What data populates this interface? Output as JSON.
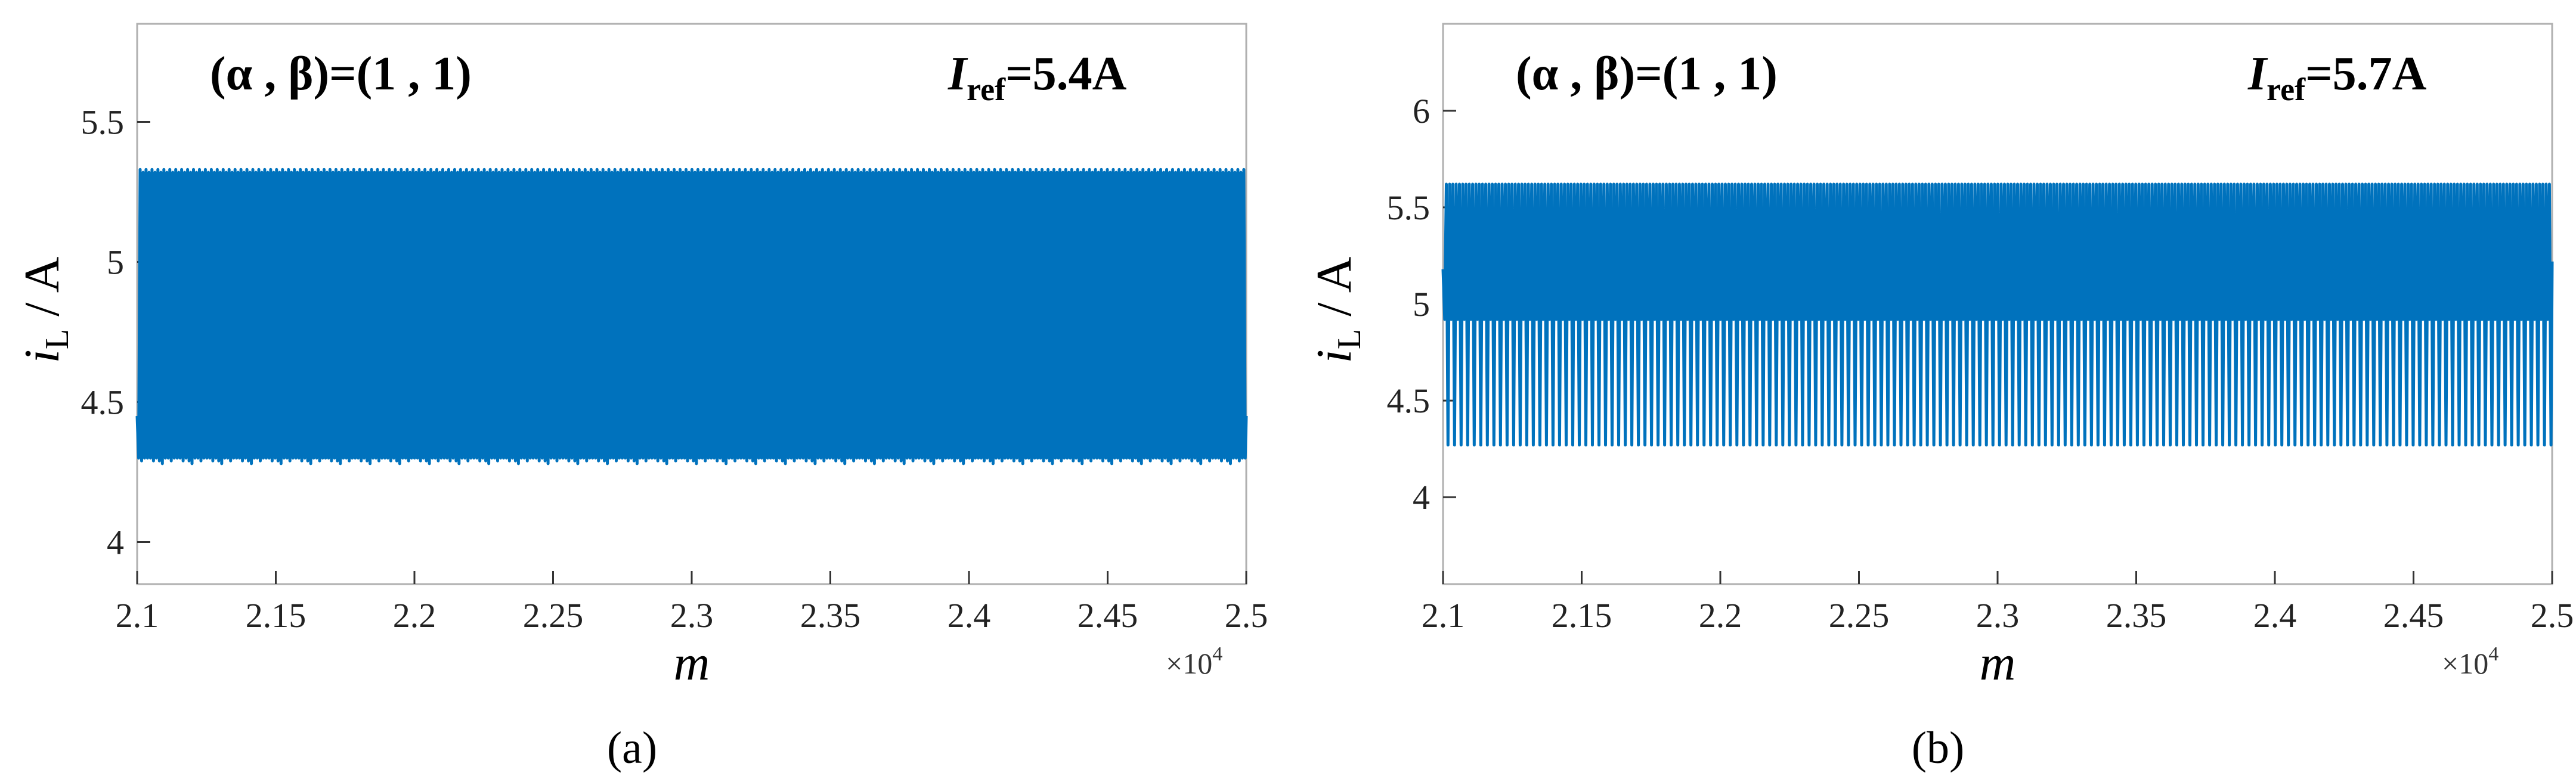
{
  "chart_data": [
    {
      "panel": "a",
      "caption": "(a)",
      "type": "line",
      "params_label": "(α , β)=(1 , 1)",
      "iref_label": {
        "symbol": "I",
        "subscript": "ref",
        "value": "=5.4A"
      },
      "xlabel": "m",
      "ylabel": {
        "symbol": "i",
        "subscript": "L",
        "unit": " / A"
      },
      "x_multiplier": "×10",
      "x_multiplier_exp": "4",
      "xlim": [
        2.1,
        2.5
      ],
      "ylim": [
        3.85,
        5.85
      ],
      "xticks": [
        2.1,
        2.15,
        2.2,
        2.25,
        2.3,
        2.35,
        2.4,
        2.45,
        2.5
      ],
      "xtick_labels": [
        "2.1",
        "2.15",
        "2.2",
        "2.25",
        "2.3",
        "2.35",
        "2.4",
        "2.45",
        "2.5"
      ],
      "yticks": [
        4,
        4.5,
        5,
        5.5
      ],
      "ytick_labels": [
        "4",
        "4.5",
        "5",
        "5.5"
      ],
      "color": "#0072BD",
      "series": [
        {
          "x_start": 2.1,
          "x_end": 2.5,
          "x_step": 0.000535,
          "y_first": 4.45,
          "y_last": 4.45,
          "lower": [
            4.3,
            4.29,
            4.3,
            4.3,
            4.3,
            4.29,
            4.3,
            4.29,
            4.28,
            4.3
          ],
          "upper": [
            5.32,
            5.33,
            5.32,
            5.33,
            5.32,
            5.33,
            5.32,
            5.33,
            5.32,
            5.33
          ],
          "pattern": "period-1 sawtooth"
        }
      ]
    },
    {
      "panel": "b",
      "caption": "(b)",
      "type": "line",
      "params_label": "(α , β)=(1 , 1)",
      "iref_label": {
        "symbol": "I",
        "subscript": "ref",
        "value": "=5.7A"
      },
      "xlabel": "m",
      "ylabel": {
        "symbol": "i",
        "subscript": "L",
        "unit": " / A"
      },
      "x_multiplier": "×10",
      "x_multiplier_exp": "4",
      "xlim": [
        2.1,
        2.5
      ],
      "ylim": [
        3.55,
        6.45
      ],
      "xticks": [
        2.1,
        2.15,
        2.2,
        2.25,
        2.3,
        2.35,
        2.4,
        2.45,
        2.5
      ],
      "xtick_labels": [
        "2.1",
        "2.15",
        "2.2",
        "2.25",
        "2.3",
        "2.35",
        "2.4",
        "2.45",
        "2.5"
      ],
      "yticks": [
        4,
        4.5,
        5,
        5.5,
        6
      ],
      "ytick_labels": [
        "4",
        "4.5",
        "5",
        "5.5",
        "6"
      ],
      "color": "#0072BD",
      "series": [
        {
          "x_start": 2.1,
          "x_end": 2.5,
          "x_step": 0.000592,
          "y_first": 5.18,
          "y_last": 5.22,
          "pattern": "period-2",
          "peak": 5.62,
          "low_deep": 4.27,
          "low_shallow": 4.92
        }
      ]
    }
  ]
}
